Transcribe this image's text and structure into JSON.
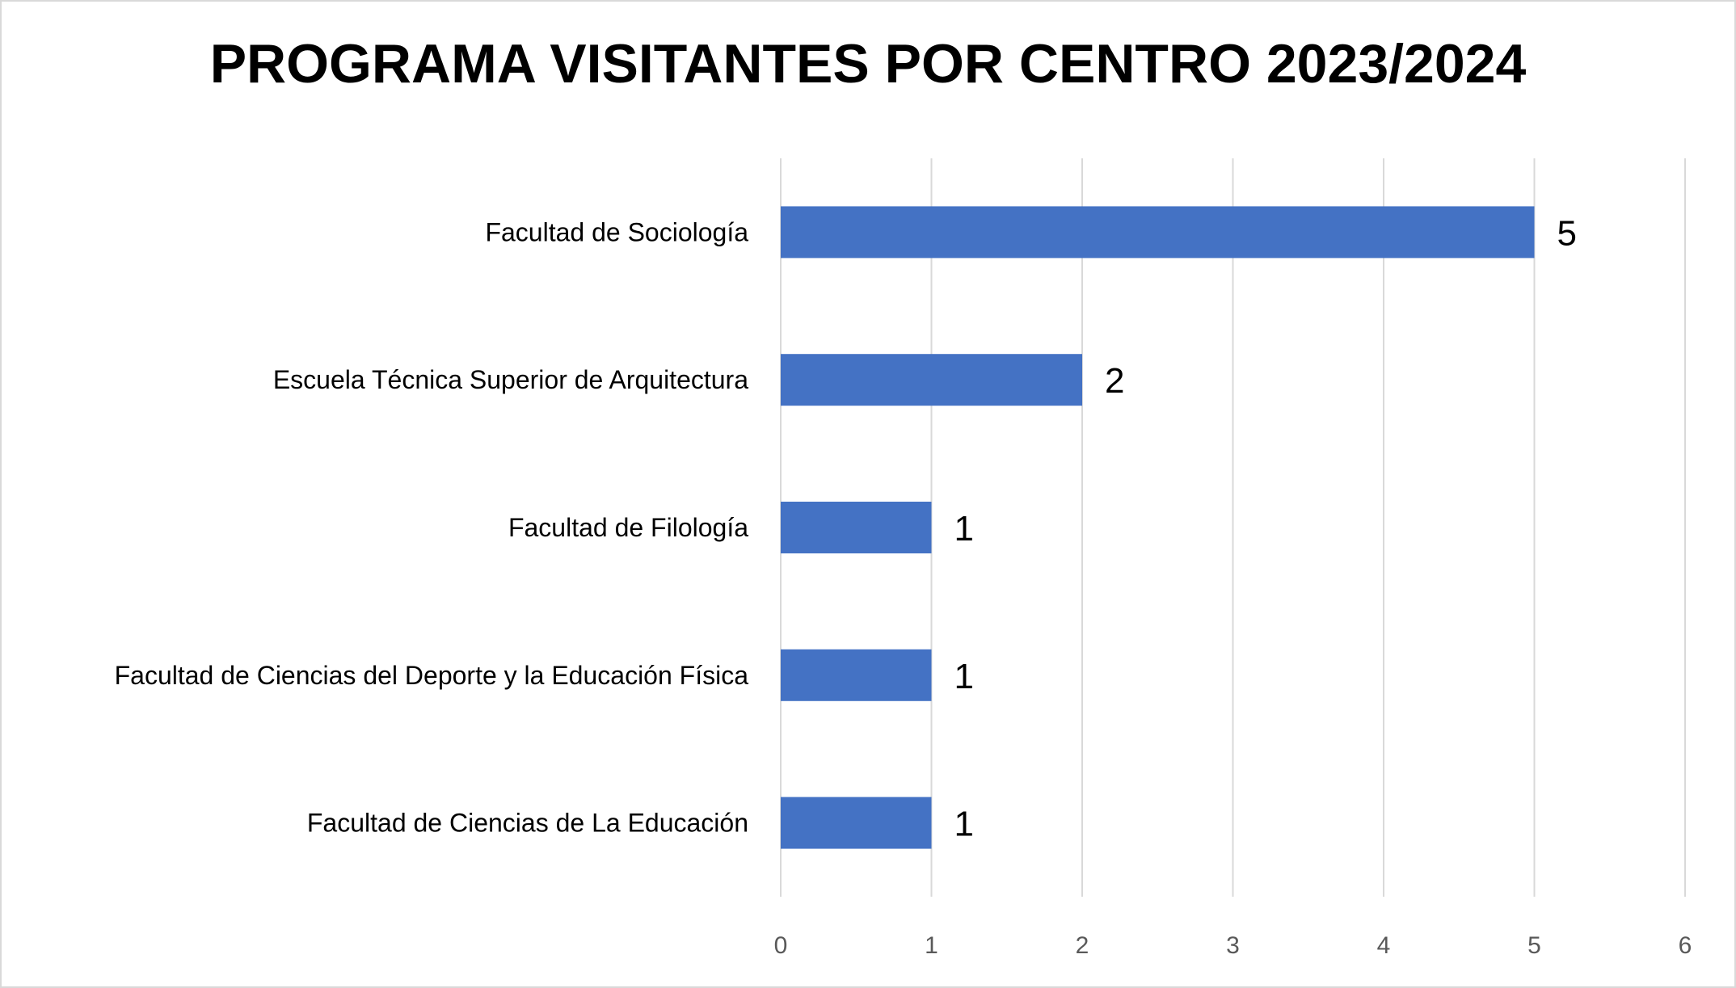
{
  "chart_data": {
    "type": "bar",
    "orientation": "horizontal",
    "title": "PROGRAMA VISITANTES POR CENTRO 2023/2024",
    "categories": [
      "Facultad de Sociología",
      "Escuela Técnica Superior de Arquitectura",
      "Facultad de Filología",
      "Facultad de Ciencias del Deporte y la Educación Física",
      "Facultad de Ciencias de La Educación"
    ],
    "values": [
      5,
      2,
      1,
      1,
      1
    ],
    "xlim": [
      0,
      6
    ],
    "xticks": [
      "0",
      "1",
      "2",
      "3",
      "4",
      "5",
      "6"
    ],
    "xlabel": "",
    "ylabel": "",
    "grid": true,
    "data_labels": true,
    "bar_color": "#4472c4"
  }
}
